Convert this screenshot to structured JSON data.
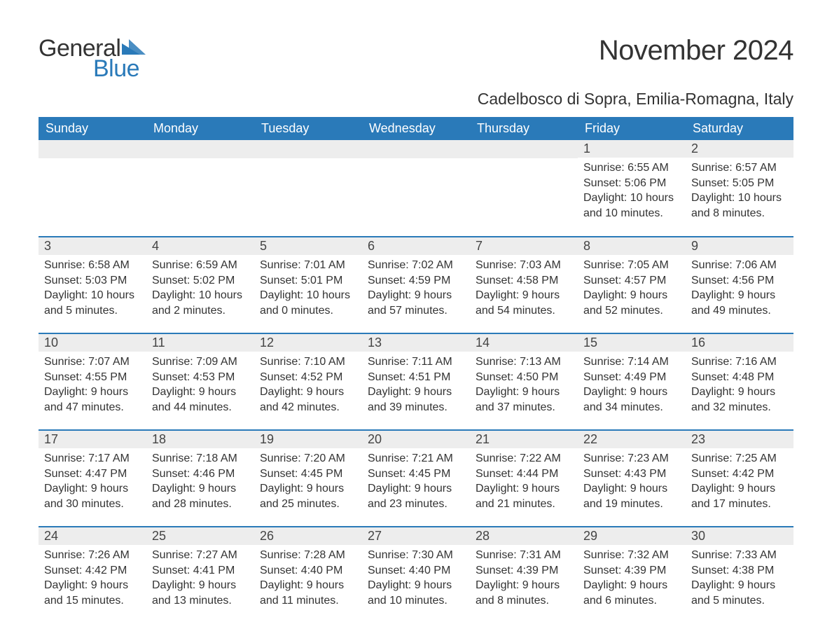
{
  "colors": {
    "brand_blue": "#2a7ab9",
    "header_bg": "#2a7ab9",
    "header_text": "#ffffff",
    "daynum_bg": "#ededed",
    "body_text": "#333333",
    "page_bg": "#ffffff",
    "row_border": "#2a7ab9"
  },
  "typography": {
    "title_fontsize_pt": 30,
    "location_fontsize_pt": 17,
    "header_fontsize_pt": 14,
    "daynum_fontsize_pt": 14,
    "body_fontsize_pt": 12,
    "logo_fontsize_pt": 26
  },
  "logo": {
    "text_general": "General",
    "text_blue": "Blue"
  },
  "title": "November 2024",
  "location": "Cadelbosco di Sopra, Emilia-Romagna, Italy",
  "weekdays": [
    "Sunday",
    "Monday",
    "Tuesday",
    "Wednesday",
    "Thursday",
    "Friday",
    "Saturday"
  ],
  "layout": {
    "columns": 7,
    "rows": 5,
    "first_week_leading_blanks": 5
  },
  "days": {
    "1": {
      "sunrise": "6:55 AM",
      "sunset": "5:06 PM",
      "daylight": "10 hours and 10 minutes."
    },
    "2": {
      "sunrise": "6:57 AM",
      "sunset": "5:05 PM",
      "daylight": "10 hours and 8 minutes."
    },
    "3": {
      "sunrise": "6:58 AM",
      "sunset": "5:03 PM",
      "daylight": "10 hours and 5 minutes."
    },
    "4": {
      "sunrise": "6:59 AM",
      "sunset": "5:02 PM",
      "daylight": "10 hours and 2 minutes."
    },
    "5": {
      "sunrise": "7:01 AM",
      "sunset": "5:01 PM",
      "daylight": "10 hours and 0 minutes."
    },
    "6": {
      "sunrise": "7:02 AM",
      "sunset": "4:59 PM",
      "daylight": "9 hours and 57 minutes."
    },
    "7": {
      "sunrise": "7:03 AM",
      "sunset": "4:58 PM",
      "daylight": "9 hours and 54 minutes."
    },
    "8": {
      "sunrise": "7:05 AM",
      "sunset": "4:57 PM",
      "daylight": "9 hours and 52 minutes."
    },
    "9": {
      "sunrise": "7:06 AM",
      "sunset": "4:56 PM",
      "daylight": "9 hours and 49 minutes."
    },
    "10": {
      "sunrise": "7:07 AM",
      "sunset": "4:55 PM",
      "daylight": "9 hours and 47 minutes."
    },
    "11": {
      "sunrise": "7:09 AM",
      "sunset": "4:53 PM",
      "daylight": "9 hours and 44 minutes."
    },
    "12": {
      "sunrise": "7:10 AM",
      "sunset": "4:52 PM",
      "daylight": "9 hours and 42 minutes."
    },
    "13": {
      "sunrise": "7:11 AM",
      "sunset": "4:51 PM",
      "daylight": "9 hours and 39 minutes."
    },
    "14": {
      "sunrise": "7:13 AM",
      "sunset": "4:50 PM",
      "daylight": "9 hours and 37 minutes."
    },
    "15": {
      "sunrise": "7:14 AM",
      "sunset": "4:49 PM",
      "daylight": "9 hours and 34 minutes."
    },
    "16": {
      "sunrise": "7:16 AM",
      "sunset": "4:48 PM",
      "daylight": "9 hours and 32 minutes."
    },
    "17": {
      "sunrise": "7:17 AM",
      "sunset": "4:47 PM",
      "daylight": "9 hours and 30 minutes."
    },
    "18": {
      "sunrise": "7:18 AM",
      "sunset": "4:46 PM",
      "daylight": "9 hours and 28 minutes."
    },
    "19": {
      "sunrise": "7:20 AM",
      "sunset": "4:45 PM",
      "daylight": "9 hours and 25 minutes."
    },
    "20": {
      "sunrise": "7:21 AM",
      "sunset": "4:45 PM",
      "daylight": "9 hours and 23 minutes."
    },
    "21": {
      "sunrise": "7:22 AM",
      "sunset": "4:44 PM",
      "daylight": "9 hours and 21 minutes."
    },
    "22": {
      "sunrise": "7:23 AM",
      "sunset": "4:43 PM",
      "daylight": "9 hours and 19 minutes."
    },
    "23": {
      "sunrise": "7:25 AM",
      "sunset": "4:42 PM",
      "daylight": "9 hours and 17 minutes."
    },
    "24": {
      "sunrise": "7:26 AM",
      "sunset": "4:42 PM",
      "daylight": "9 hours and 15 minutes."
    },
    "25": {
      "sunrise": "7:27 AM",
      "sunset": "4:41 PM",
      "daylight": "9 hours and 13 minutes."
    },
    "26": {
      "sunrise": "7:28 AM",
      "sunset": "4:40 PM",
      "daylight": "9 hours and 11 minutes."
    },
    "27": {
      "sunrise": "7:30 AM",
      "sunset": "4:40 PM",
      "daylight": "9 hours and 10 minutes."
    },
    "28": {
      "sunrise": "7:31 AM",
      "sunset": "4:39 PM",
      "daylight": "9 hours and 8 minutes."
    },
    "29": {
      "sunrise": "7:32 AM",
      "sunset": "4:39 PM",
      "daylight": "9 hours and 6 minutes."
    },
    "30": {
      "sunrise": "7:33 AM",
      "sunset": "4:38 PM",
      "daylight": "9 hours and 5 minutes."
    }
  },
  "labels": {
    "sunrise": "Sunrise:",
    "sunset": "Sunset:",
    "daylight": "Daylight:"
  }
}
